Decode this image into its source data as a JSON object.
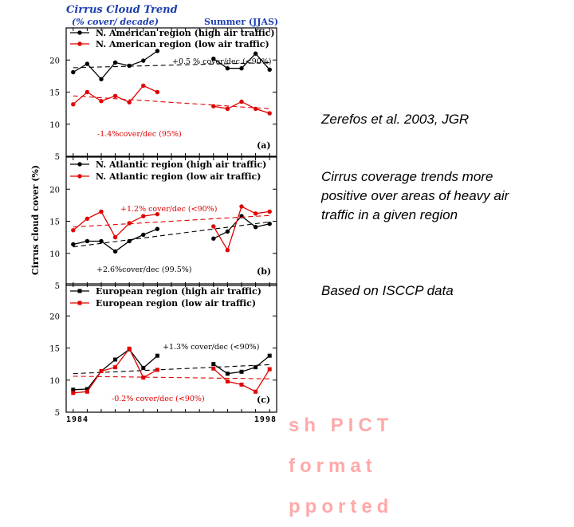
{
  "figure": {
    "title": "Cirrus Cloud Trend",
    "subtitle": "(% cover/ decade)",
    "season": "Summer (JJAS)",
    "ylabel": "Cirrus cloud cover (%)",
    "x_start_label": "1984",
    "x_end_label": "1998"
  },
  "side_text": {
    "citation": "Zerefos et al. 2003, JGR",
    "finding": "Cirrus coverage trends more positive over areas of heavy air traffic in a given region",
    "source": "Based on ISCCP data"
  },
  "placeholder_stamp": {
    "lines": [
      "sh PICT",
      "format",
      "pported"
    ]
  },
  "colors": {
    "high": "#000000",
    "low": "#e00000",
    "title": "#1d3fb0"
  },
  "chart_data": [
    {
      "type": "line",
      "panel": "(a)",
      "region": "N. American",
      "ylim": [
        5,
        25
      ],
      "yticks": [
        5,
        10,
        15,
        20
      ],
      "xlim": [
        1983.5,
        1998.5
      ],
      "series": [
        {
          "name": "N. American region (high air traffic)",
          "color": "#000000",
          "marker": "circle",
          "x": [
            1984,
            1985,
            1986,
            1987,
            1988,
            1989,
            1990,
            1994,
            1995,
            1996,
            1997,
            1998
          ],
          "values": [
            18.1,
            19.4,
            17.0,
            19.6,
            19.1,
            19.9,
            21.4,
            20.2,
            18.7,
            18.7,
            21.0,
            18.5
          ],
          "trend_label": "+0.5 % cover/dec (<90%)",
          "trend": [
            18.8,
            19.6
          ]
        },
        {
          "name": "N. American region (low air traffic)",
          "color": "#e00000",
          "marker": "circle",
          "x": [
            1984,
            1985,
            1986,
            1987,
            1988,
            1989,
            1990,
            1994,
            1995,
            1996,
            1997,
            1998
          ],
          "values": [
            13.1,
            15.0,
            13.6,
            14.4,
            13.4,
            16.0,
            15.0,
            12.8,
            12.4,
            13.5,
            12.4,
            11.7
          ],
          "trend_label": "-1.4%cover/dec (95%)",
          "trend": [
            14.4,
            12.4
          ]
        }
      ]
    },
    {
      "type": "line",
      "panel": "(b)",
      "region": "N. Atlantic",
      "ylim": [
        5,
        25
      ],
      "yticks": [
        5,
        10,
        15,
        20
      ],
      "xlim": [
        1983.5,
        1998.5
      ],
      "series": [
        {
          "name": "N. Atlantic region (high air traffic)",
          "color": "#000000",
          "marker": "circle",
          "x": [
            1984,
            1985,
            1986,
            1987,
            1988,
            1989,
            1990,
            1994,
            1995,
            1996,
            1997,
            1998
          ],
          "values": [
            11.4,
            11.9,
            11.9,
            10.3,
            11.9,
            12.9,
            13.8,
            12.3,
            13.4,
            15.8,
            14.1,
            14.6
          ],
          "trend_label": "+2.6%cover/dec (99.5%)",
          "trend": [
            11.0,
            14.9
          ]
        },
        {
          "name": "N. Atlantic region (low air traffic)",
          "color": "#e00000",
          "marker": "circle",
          "x": [
            1984,
            1985,
            1986,
            1987,
            1988,
            1989,
            1990,
            1994,
            1995,
            1996,
            1997,
            1998
          ],
          "values": [
            13.6,
            15.4,
            16.5,
            12.5,
            14.7,
            15.8,
            16.1,
            14.2,
            10.5,
            17.3,
            16.2,
            16.5
          ],
          "trend_label": "+1.2% cover/dec (<90%)",
          "trend": [
            14.1,
            15.9
          ]
        }
      ]
    },
    {
      "type": "line",
      "panel": "(c)",
      "region": "European",
      "ylim": [
        5,
        25
      ],
      "yticks": [
        5,
        10,
        15,
        20
      ],
      "xlim": [
        1983.5,
        1998.5
      ],
      "series": [
        {
          "name": "European region (high air traffic)",
          "color": "#000000",
          "marker": "square",
          "x": [
            1984,
            1985,
            1986,
            1987,
            1988,
            1989,
            1990,
            1994,
            1995,
            1996,
            1997,
            1998
          ],
          "values": [
            8.5,
            8.6,
            11.4,
            13.2,
            14.8,
            11.9,
            13.8,
            12.5,
            11.0,
            11.3,
            12.0,
            13.8
          ],
          "trend_label": "+1.3% cover/dec (<90%)",
          "trend": [
            11.0,
            12.4
          ]
        },
        {
          "name": "European region (low air traffic)",
          "color": "#e00000",
          "marker": "square",
          "x": [
            1984,
            1985,
            1986,
            1987,
            1988,
            1989,
            1990,
            1994,
            1995,
            1996,
            1997,
            1998
          ],
          "values": [
            8.0,
            8.2,
            11.4,
            12.0,
            14.9,
            10.4,
            11.6,
            11.8,
            9.8,
            9.3,
            8.2,
            11.7
          ],
          "trend_label": "-0.2% cover/dec (<90%)",
          "trend": [
            10.6,
            10.2
          ]
        }
      ]
    }
  ]
}
